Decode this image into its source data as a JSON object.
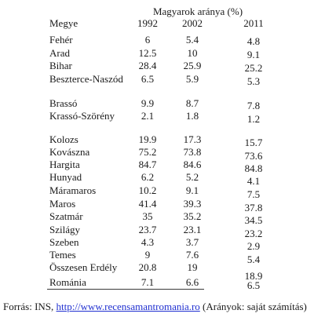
{
  "table": {
    "group_header": "Magyarok aránya (%)",
    "headers": {
      "county": "Megye",
      "y1992": "1992",
      "y2002": "2002",
      "y2011": "2011"
    },
    "rows": [
      {
        "county": "Fehér",
        "v1992": "6",
        "v2002": "5.4",
        "v2011": "4.8"
      },
      {
        "county": "Arad",
        "v1992": "12.5",
        "v2002": "10",
        "v2011": "9.1"
      },
      {
        "county": "Bihar",
        "v1992": "28.4",
        "v2002": "25.9",
        "v2011": "25.2"
      },
      {
        "county": "Beszterce-Naszód",
        "v1992": "6.5",
        "v2002": "5.9",
        "v2011": "5.3"
      },
      {
        "county": "Brassó",
        "v1992": "9.9",
        "v2002": "8.7",
        "v2011": "7.8"
      },
      {
        "county": "Krassó-Szörény",
        "v1992": "2.1",
        "v2002": "1.8",
        "v2011": "1.2"
      },
      {
        "county": "Kolozs",
        "v1992": "19.9",
        "v2002": "17.3",
        "v2011": "15.7"
      },
      {
        "county": "Kovászna",
        "v1992": "75.2",
        "v2002": "73.8",
        "v2011": "73.6"
      },
      {
        "county": "Hargita",
        "v1992": "84.7",
        "v2002": "84.6",
        "v2011": "84.8"
      },
      {
        "county": "Hunyad",
        "v1992": "6.2",
        "v2002": "5.2",
        "v2011": "4.1"
      },
      {
        "county": "Máramaros",
        "v1992": "10.2",
        "v2002": "9.1",
        "v2011": "7.5"
      },
      {
        "county": "Maros",
        "v1992": "41.4",
        "v2002": "39.3",
        "v2011": "37.8"
      },
      {
        "county": "Szatmár",
        "v1992": "35",
        "v2002": "35.2",
        "v2011": "34.5"
      },
      {
        "county": "Szilágy",
        "v1992": "23.7",
        "v2002": "23.1",
        "v2011": "23.2"
      },
      {
        "county": "Szeben",
        "v1992": "4.3",
        "v2002": "3.7",
        "v2011": "2.9"
      },
      {
        "county": "Temes",
        "v1992": "9",
        "v2002": "7.6",
        "v2011": "5.4"
      },
      {
        "county": "Összesen Erdély",
        "v1992": "20.8",
        "v2002": "19",
        "v2011": "18.9"
      },
      {
        "county": "Románia",
        "v1992": "7.1",
        "v2002": "6.6",
        "v2011": "6.5"
      }
    ]
  },
  "source": {
    "prefix": "Forrás: INS, ",
    "link": "http://www.recensamantromania.ro",
    "suffix": " (Arányok: saját számítás)"
  }
}
